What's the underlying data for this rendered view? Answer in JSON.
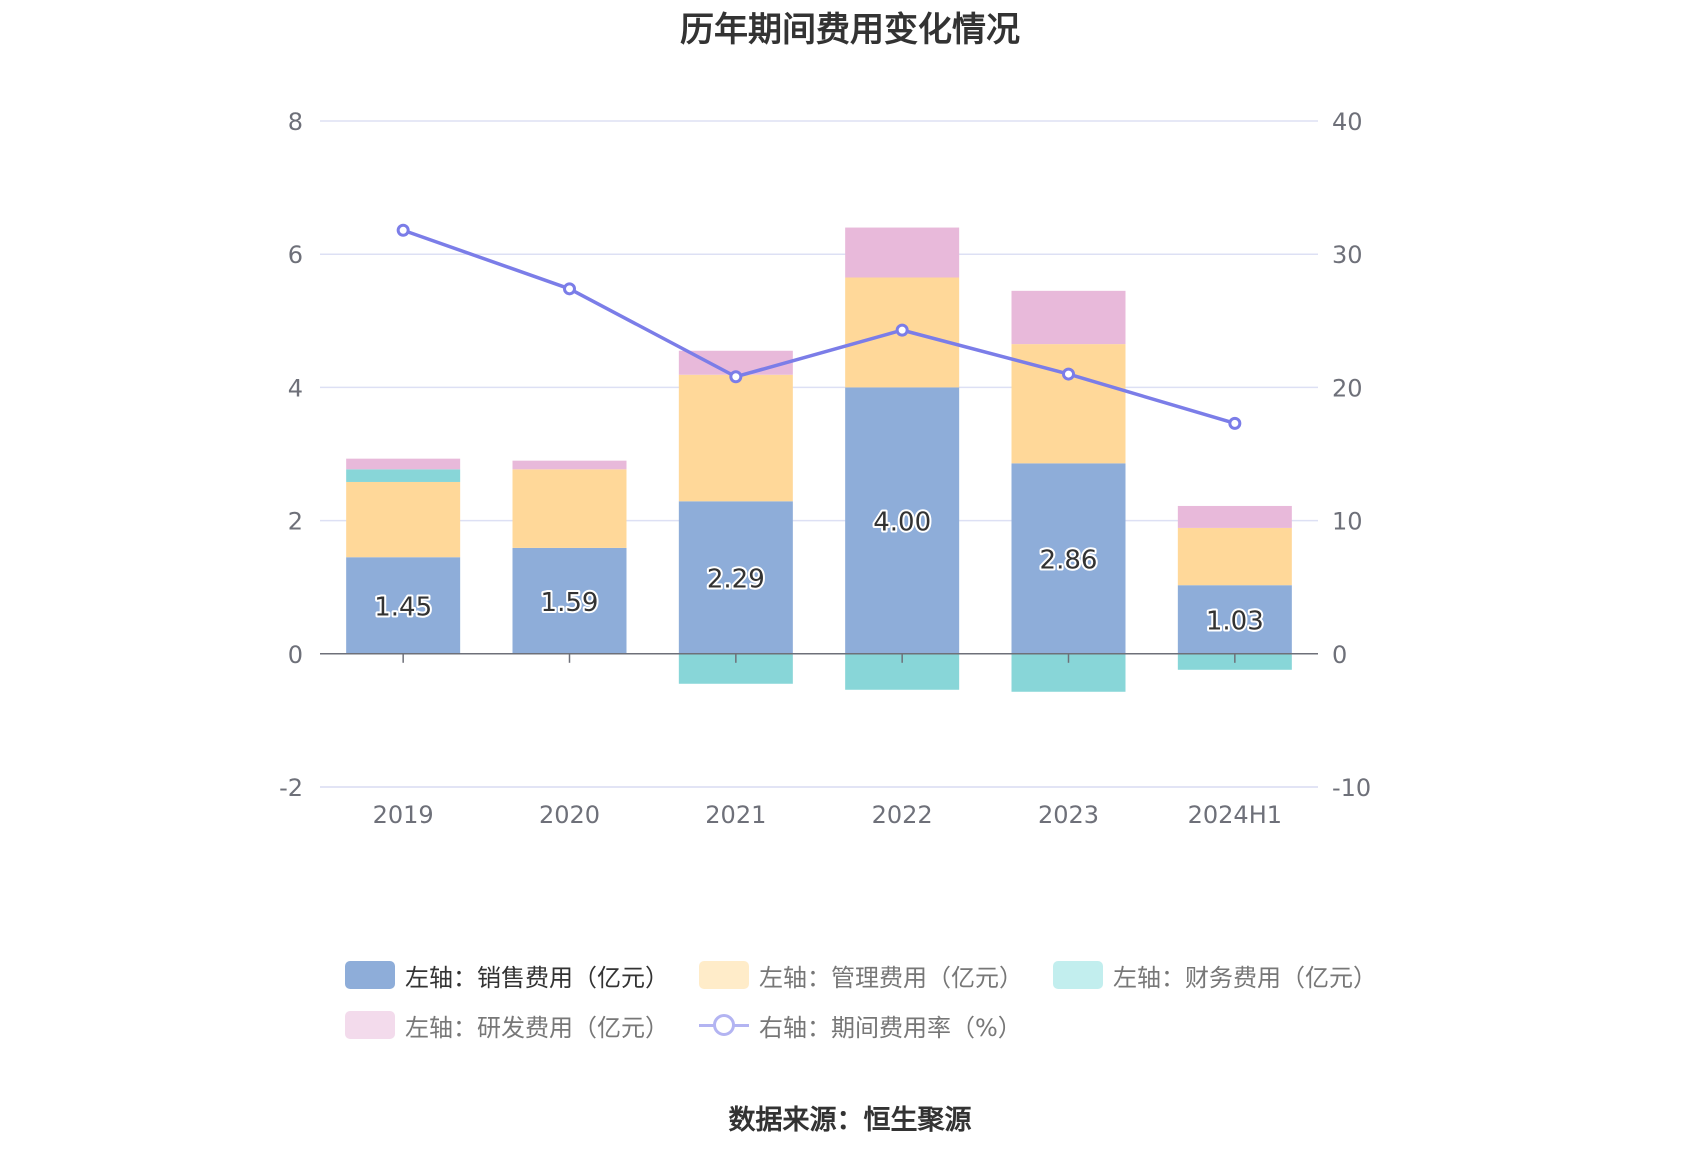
{
  "title": "历年期间费用变化情况",
  "source": "数据来源：恒生聚源",
  "colors": {
    "sales": "#8eadd9",
    "admin": "#ffd899",
    "finance": "#88d6d8",
    "rd": "#e8b9da",
    "rate": "#7b7de8",
    "grid": "#dde0f4",
    "axis": "#6e7079",
    "tick_text": "#6e7079"
  },
  "legend": {
    "items": [
      {
        "key": "sales",
        "label": "左轴：销售费用（亿元）",
        "swatch": "#8eadd9",
        "label_color": "#333333"
      },
      {
        "key": "admin",
        "label": "左轴：管理费用（亿元）",
        "swatch": "#ffecc9",
        "label_color": "#777777"
      },
      {
        "key": "finance",
        "label": "左轴：财务费用（亿元）",
        "swatch": "#c2eeee",
        "label_color": "#777777"
      },
      {
        "key": "rd",
        "label": "左轴：研发费用（亿元）",
        "swatch": "#f3dbec",
        "label_color": "#777777"
      },
      {
        "key": "rate",
        "label": "右轴：期间费用率（%）",
        "swatch": "#b3b4f2",
        "label_color": "#777777",
        "line": true
      }
    ]
  },
  "chart_data": {
    "type": "bar",
    "stacked": true,
    "categories": [
      "2019",
      "2020",
      "2021",
      "2022",
      "2023",
      "2024H1"
    ],
    "series": [
      {
        "key": "sales",
        "name": "左轴：销售费用（亿元）",
        "axis": "left",
        "values": [
          1.45,
          1.59,
          2.29,
          4.0,
          2.86,
          1.03
        ],
        "data_labels": [
          "1.45",
          "1.59",
          "2.29",
          "4.00",
          "2.86",
          "1.03"
        ]
      },
      {
        "key": "admin",
        "name": "左轴：管理费用（亿元）",
        "axis": "left",
        "values": [
          1.13,
          1.18,
          1.9,
          1.65,
          1.79,
          0.86
        ]
      },
      {
        "key": "finance",
        "name": "左轴：财务费用（亿元）",
        "axis": "left",
        "values": [
          0.19,
          0.0,
          -0.45,
          -0.54,
          -0.57,
          -0.24
        ]
      },
      {
        "key": "rd",
        "name": "左轴：研发费用（亿元）",
        "axis": "left",
        "values": [
          0.16,
          0.13,
          0.36,
          0.75,
          0.8,
          0.33
        ]
      },
      {
        "key": "rate",
        "name": "右轴：期间费用率（%）",
        "type": "line",
        "axis": "right",
        "values": [
          31.8,
          27.4,
          20.8,
          24.3,
          21.0,
          17.3
        ]
      }
    ],
    "y_left": {
      "min": -2,
      "max": 8,
      "ticks": [
        8,
        6,
        4,
        2,
        0,
        -2
      ]
    },
    "y_right": {
      "min": -10,
      "max": 40,
      "ticks": [
        40,
        30,
        20,
        10,
        0,
        -10
      ]
    },
    "grid": true,
    "legend_position": "bottom"
  }
}
